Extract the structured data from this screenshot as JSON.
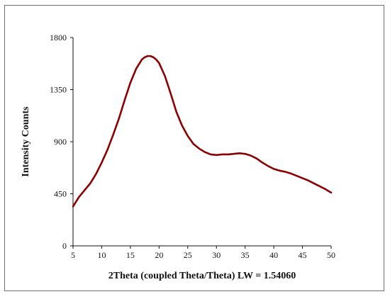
{
  "chart_data": {
    "type": "line",
    "title": "",
    "xlabel": "2Theta (coupled Theta/Theta) LW = 1.54060",
    "ylabel": "Intensity Counts",
    "xlim": [
      5,
      50
    ],
    "ylim": [
      0,
      1800
    ],
    "xticks": [
      5,
      10,
      15,
      20,
      25,
      30,
      35,
      40,
      45,
      50
    ],
    "yticks": [
      0,
      450,
      900,
      1350,
      1800
    ],
    "grid": false,
    "legend": "none",
    "series": [
      {
        "color": "#8b0000",
        "x": [
          5,
          6,
          7,
          8,
          9,
          10,
          11,
          12,
          13,
          14,
          15,
          16,
          17,
          17.5,
          18,
          18.5,
          19,
          19.5,
          20,
          21,
          22,
          23,
          24,
          25,
          26,
          27,
          28,
          29,
          30,
          31,
          32,
          33,
          34,
          35,
          36,
          37,
          38,
          39,
          40,
          41,
          42,
          43,
          44,
          45,
          46,
          47,
          48,
          49,
          50
        ],
        "y": [
          340,
          420,
          480,
          540,
          620,
          720,
          830,
          960,
          1100,
          1260,
          1410,
          1530,
          1610,
          1630,
          1640,
          1640,
          1630,
          1610,
          1580,
          1470,
          1320,
          1160,
          1040,
          950,
          880,
          840,
          810,
          790,
          785,
          790,
          790,
          795,
          800,
          795,
          780,
          755,
          720,
          690,
          665,
          650,
          640,
          625,
          605,
          585,
          565,
          540,
          515,
          490,
          460
        ]
      }
    ]
  }
}
